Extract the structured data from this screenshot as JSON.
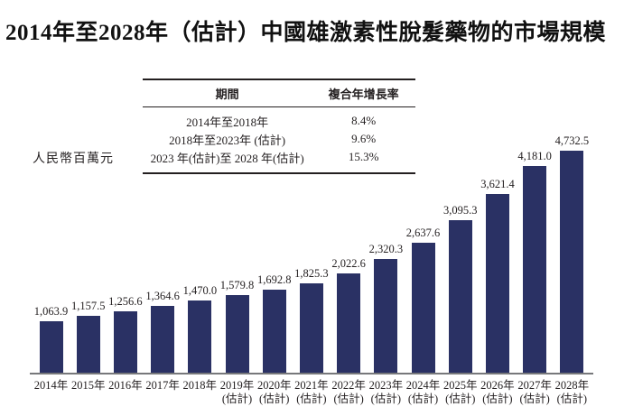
{
  "title": "2014年至2028年（估計）中國雄激素性脫髮藥物的市場規模",
  "y_axis_unit": "人民幣百萬元",
  "cagr_table": {
    "headers": [
      "期間",
      "複合年增長率"
    ],
    "rows": [
      {
        "period": "2014年至2018年",
        "cagr": "8.4%"
      },
      {
        "period": "2018年至2023年 (估計)",
        "cagr": "9.6%"
      },
      {
        "period": "2023 年(估計)至 2028 年(估計)",
        "cagr": "15.3%"
      }
    ]
  },
  "chart_data": {
    "type": "bar",
    "title": "2014年至2028年（估計）中國雄激素性脫髮藥物的市場規模",
    "ylabel": "人民幣百萬元",
    "xlabel": "",
    "ylim": [
      0,
      4732.5
    ],
    "grid": false,
    "legend": "none",
    "estimate_suffix": "(估計)",
    "categories": [
      "2014年",
      "2015年",
      "2016年",
      "2017年",
      "2018年",
      "2019年",
      "2020年",
      "2021年",
      "2022年",
      "2023年",
      "2024年",
      "2025年",
      "2026年",
      "2027年",
      "2028年"
    ],
    "estimate_flags": [
      false,
      false,
      false,
      false,
      false,
      true,
      true,
      true,
      true,
      true,
      true,
      true,
      true,
      true,
      true
    ],
    "values": [
      1063.9,
      1157.5,
      1256.6,
      1364.6,
      1470.0,
      1579.8,
      1692.8,
      1825.3,
      2022.6,
      2320.3,
      2637.6,
      3095.3,
      3621.4,
      4181.0,
      4732.5
    ],
    "value_labels": [
      "1,063.9",
      "1,157.5",
      "1,256.6",
      "1,364.6",
      "1,470.0",
      "1,579.8",
      "1,692.8",
      "1,825.3",
      "2,022.6",
      "2,320.3",
      "2,637.6",
      "3,095.3",
      "3,621.4",
      "4,181.0",
      "4,732.5"
    ]
  },
  "colors": {
    "bar": "#2a3164",
    "axis_line": "#77787b",
    "text": "#231f20"
  }
}
